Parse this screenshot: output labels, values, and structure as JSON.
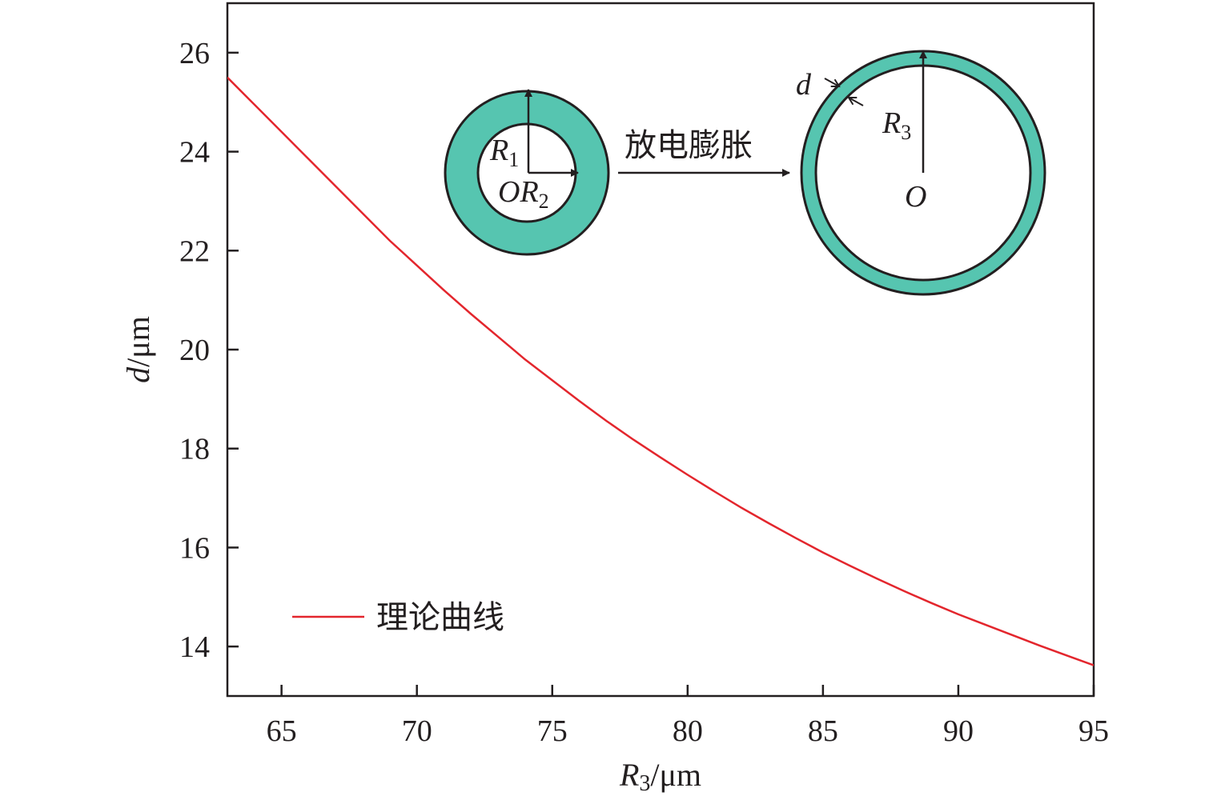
{
  "chart_data": {
    "type": "line",
    "xlabel": {
      "var": "R",
      "sub": "3",
      "unit": "/μm"
    },
    "ylabel": {
      "var": "d",
      "unit": "/μm"
    },
    "xlim": [
      63,
      95
    ],
    "ylim": [
      13,
      27
    ],
    "x_ticks": [
      "65",
      "70",
      "75",
      "80",
      "85",
      "90",
      "95"
    ],
    "y_ticks": [
      "14",
      "16",
      "18",
      "20",
      "22",
      "24",
      "26"
    ],
    "grid": false,
    "legend": {
      "position": "bottom-left",
      "entries": [
        "理论曲线"
      ]
    },
    "series": [
      {
        "name": "理论曲线",
        "color": "#e3262d",
        "x": [
          63,
          64,
          65,
          66,
          67,
          68,
          69,
          70,
          71,
          72,
          73,
          74,
          75,
          76,
          77,
          78,
          79,
          80,
          81,
          82,
          83,
          84,
          85,
          86,
          87,
          88,
          89,
          90,
          91,
          92,
          93,
          94,
          95
        ],
        "y": [
          25.5,
          24.95,
          24.4,
          23.85,
          23.3,
          22.75,
          22.2,
          21.7,
          21.2,
          20.72,
          20.26,
          19.8,
          19.38,
          18.96,
          18.56,
          18.18,
          17.82,
          17.47,
          17.13,
          16.8,
          16.49,
          16.19,
          15.9,
          15.63,
          15.37,
          15.12,
          14.88,
          14.65,
          14.44,
          14.23,
          14.02,
          13.82,
          13.62
        ]
      }
    ]
  },
  "inset": {
    "ring_color": "#56c5b0",
    "before_labels": {
      "r1_var": "R",
      "r1_sub": "1",
      "origin": "O",
      "r2_var": "R",
      "r2_sub": "2"
    },
    "process_label": "放电膨胀",
    "after_labels": {
      "d": "d",
      "r3_var": "R",
      "r3_sub": "3",
      "origin": "O"
    }
  }
}
